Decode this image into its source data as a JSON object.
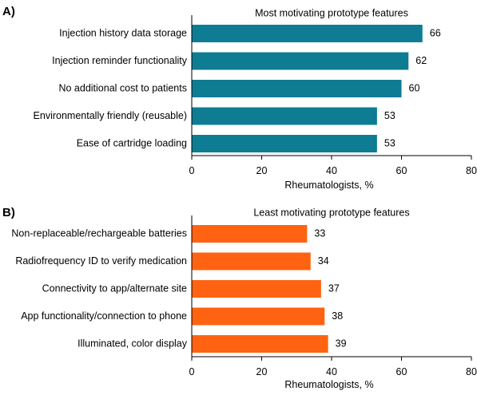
{
  "chart_data": [
    {
      "panel_label": "A)",
      "type": "bar",
      "orientation": "horizontal",
      "title": "Most motivating prototype features",
      "xlabel": "Rheumatologists, %",
      "xlim": [
        0,
        80
      ],
      "xticks": [
        0,
        20,
        40,
        60,
        80
      ],
      "color": "#0E7C93",
      "categories": [
        "Injection history data storage",
        "Injection reminder functionality",
        "No additional cost to patients",
        "Environmentally friendly (reusable)",
        "Ease of cartridge loading"
      ],
      "values": [
        66,
        62,
        60,
        53,
        53
      ]
    },
    {
      "panel_label": "B)",
      "type": "bar",
      "orientation": "horizontal",
      "title": "Least motivating prototype features",
      "xlabel": "Rheumatologists, %",
      "xlim": [
        0,
        80
      ],
      "xticks": [
        0,
        20,
        40,
        60,
        80
      ],
      "color": "#FF6311",
      "categories": [
        "Non-replaceable/rechargeable batteries",
        "Radiofrequency ID to verify medication",
        "Connectivity to app/alternate site",
        "App functionality/connection to phone",
        "Illuminated, color display"
      ],
      "values": [
        33,
        34,
        37,
        38,
        39
      ]
    }
  ]
}
